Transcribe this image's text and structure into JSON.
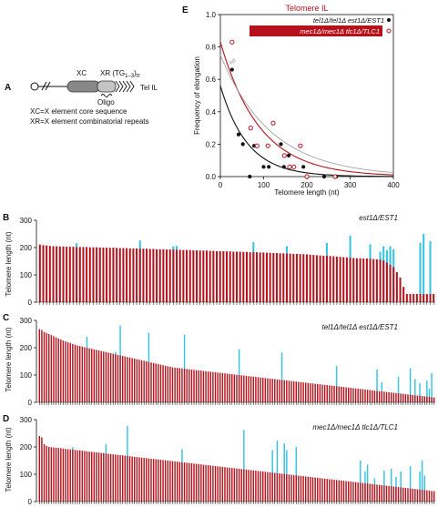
{
  "colors": {
    "red": "#b5121b",
    "cyan": "#33c3e3",
    "black": "#111111",
    "grey": "#999999"
  },
  "panel_a": {
    "letter": "A",
    "xc": "XC",
    "xr_prefix": "XR (TG",
    "xr_sub": "1–3",
    "xr_suffix": ")",
    "xr_n": "n",
    "oligo": "Oligo",
    "tel": "Tel IL",
    "legend1": "XC=X element core sequence",
    "legend2": "XR=X element combinatorial repeats"
  },
  "chart_data": [
    {
      "type": "scatter",
      "panel": "E",
      "title": "Telomere IL",
      "xlabel": "Telomere length (nt)",
      "ylabel": "Frequency of elongation",
      "xlim": [
        0,
        400
      ],
      "ylim": [
        0,
        1.0
      ],
      "xticks": [
        "0",
        "100",
        "200",
        "300",
        "400"
      ],
      "yticks": [
        "0.0",
        "0.2",
        "0.4",
        "0.6",
        "0.8",
        "1.0"
      ],
      "wt_label": "wt",
      "legend_placement": "top-right",
      "series": [
        {
          "name": "tel1Δ/tel1Δ est1Δ/EST1",
          "marker": "filled-circle",
          "points": [
            [
              27,
              0.66
            ],
            [
              42,
              0.26
            ],
            [
              52,
              0.2
            ],
            [
              68,
              0.0
            ],
            [
              78,
              0.19
            ],
            [
              100,
              0.06
            ],
            [
              112,
              0.06
            ],
            [
              140,
              0.2
            ],
            [
              147,
              0.06
            ],
            [
              158,
              0.13
            ],
            [
              192,
              0.06
            ],
            [
              200,
              0.0
            ],
            [
              240,
              0.0
            ],
            [
              268,
              0.0
            ]
          ],
          "fit": [
            0.56,
            0.016
          ]
        },
        {
          "name": "mec1Δ/mec1Δ tlc1Δ/TLC1",
          "marker": "open-circle",
          "points": [
            [
              27,
              0.83
            ],
            [
              70,
              0.3
            ],
            [
              85,
              0.19
            ],
            [
              110,
              0.19
            ],
            [
              122,
              0.33
            ],
            [
              148,
              0.13
            ],
            [
              160,
              0.06
            ],
            [
              170,
              0.06
            ],
            [
              185,
              0.19
            ],
            [
              200,
              0.0
            ],
            [
              265,
              0.0
            ]
          ],
          "fit": [
            0.83,
            0.011
          ]
        },
        {
          "name": "wt",
          "marker": "none",
          "fit": [
            0.75,
            0.0085
          ]
        }
      ]
    },
    {
      "type": "bar",
      "panel": "B",
      "title": "est1Δ/EST1",
      "ylabel": "Telomere length (nt)",
      "ylim": [
        0,
        300
      ],
      "yticks": [
        "0",
        "100",
        "200",
        "300"
      ],
      "series": [
        {
          "name": "Telomere length",
          "values": [
            211,
            209,
            208,
            206,
            205,
            205,
            204,
            204,
            203,
            203,
            203,
            202,
            202,
            202,
            202,
            201,
            201,
            201,
            200,
            200,
            200,
            199,
            199,
            199,
            198,
            198,
            198,
            197,
            197,
            197,
            196,
            196,
            196,
            195,
            195,
            194,
            194,
            194,
            193,
            193,
            193,
            192,
            192,
            191,
            191,
            191,
            190,
            190,
            189,
            189,
            189,
            188,
            188,
            187,
            187,
            187,
            186,
            186,
            185,
            185,
            185,
            184,
            184,
            183,
            183,
            183,
            182,
            182,
            181,
            181,
            180,
            180,
            179,
            179,
            178,
            178,
            177,
            177,
            176,
            176,
            175,
            174,
            173,
            172,
            171,
            170,
            170,
            169,
            168,
            167,
            166,
            165,
            164,
            163,
            162,
            161,
            161,
            160,
            160,
            159,
            158,
            157,
            156,
            153,
            145,
            137,
            128,
            110,
            90,
            56,
            30,
            30,
            30,
            30,
            30,
            30,
            30,
            30,
            30
          ]
        },
        {
          "name": "Elongation",
          "values": [
            [
              11,
              217
            ],
            [
              22,
              200
            ],
            [
              30,
              226
            ],
            [
              40,
              205
            ],
            [
              41,
              206
            ],
            [
              64,
              220
            ],
            [
              74,
              205
            ],
            [
              86,
              217
            ],
            [
              93,
              244
            ],
            [
              99,
              212
            ],
            [
              102,
              185
            ],
            [
              103,
              205
            ],
            [
              104,
              190
            ],
            [
              105,
              205
            ],
            [
              106,
              194
            ],
            [
              114,
              218
            ],
            [
              115,
              250
            ],
            [
              117,
              224
            ],
            [
              138,
              253
            ],
            [
              139,
              285
            ],
            [
              141,
              250
            ],
            [
              143,
              212
            ],
            [
              144,
              200
            ],
            [
              145,
              204
            ],
            [
              146,
              223
            ],
            [
              147,
              180
            ],
            [
              148,
              222
            ],
            [
              149,
              178
            ],
            [
              150,
              280
            ],
            [
              152,
              240
            ]
          ]
        }
      ]
    },
    {
      "type": "bar",
      "panel": "C",
      "title": "tel1Δ/tel1Δ est1Δ/EST1",
      "ylabel": "Telomere length (nt)",
      "ylim": [
        0,
        300
      ],
      "yticks": [
        "0",
        "100",
        "200",
        "300"
      ],
      "series": [
        {
          "name": "Telomere length",
          "values": [
            268,
            265,
            258,
            254,
            250,
            246,
            242,
            238,
            234,
            230,
            226,
            223,
            220,
            217,
            214,
            211,
            208,
            206,
            204,
            202,
            200,
            198,
            196,
            194,
            192,
            190,
            188,
            186,
            184,
            182,
            180,
            178,
            176,
            174,
            172,
            170,
            168,
            166,
            164,
            162,
            160,
            158,
            156,
            154,
            152,
            150,
            148,
            146,
            144,
            142,
            140,
            138,
            136,
            134,
            132,
            130,
            128,
            127,
            126,
            125,
            124,
            123,
            122,
            121,
            120,
            119,
            118,
            117,
            116,
            115,
            114,
            113,
            112,
            111,
            110,
            109,
            108,
            107,
            106,
            105,
            104,
            103,
            102,
            101,
            100,
            99,
            98,
            97,
            96,
            95,
            94,
            93,
            92,
            91,
            90,
            89,
            88,
            87,
            86,
            85,
            84,
            83,
            82,
            81,
            80,
            79,
            78,
            77,
            76,
            75,
            74,
            73,
            72,
            71,
            70,
            69,
            68,
            67,
            66,
            65,
            64,
            63,
            62,
            61,
            60,
            59,
            58,
            57,
            56,
            55,
            54,
            53,
            52,
            51,
            50,
            49,
            48,
            47,
            46,
            45,
            44,
            43,
            42,
            41,
            40,
            39,
            38,
            37,
            36,
            35,
            34,
            33,
            32,
            31,
            30,
            29,
            28,
            27,
            26,
            25,
            24,
            23,
            22,
            21,
            20,
            19,
            18
          ]
        },
        {
          "name": "Elongation",
          "values": [
            [
              20,
              240
            ],
            [
              32,
              185
            ],
            [
              34,
              282
            ],
            [
              46,
              255
            ],
            [
              61,
              248
            ],
            [
              84,
              195
            ],
            [
              102,
              182
            ],
            [
              125,
              133
            ],
            [
              142,
              120
            ],
            [
              144,
              73
            ],
            [
              151,
              93
            ],
            [
              156,
              125
            ],
            [
              158,
              85
            ],
            [
              160,
              70
            ],
            [
              163,
              80
            ],
            [
              164,
              50
            ],
            [
              165,
              107
            ]
          ]
        }
      ]
    },
    {
      "type": "bar",
      "panel": "D",
      "title": "mec1Δ/mec1Δ tlc1Δ/TLC1",
      "ylabel": "Telomere length (nt)",
      "ylim": [
        0,
        300
      ],
      "yticks": [
        "0",
        "100",
        "200",
        "300"
      ],
      "series": [
        {
          "name": "Telomere length",
          "values": [
            240,
            235,
            210,
            204,
            200,
            199,
            198,
            197,
            196,
            195,
            194,
            193,
            192,
            191,
            190,
            189,
            188,
            187,
            186,
            185,
            184,
            183,
            182,
            181,
            180,
            179,
            178,
            177,
            176,
            175,
            174,
            173,
            172,
            171,
            170,
            169,
            168,
            167,
            166,
            165,
            164,
            163,
            162,
            161,
            160,
            159,
            158,
            157,
            156,
            155,
            154,
            153,
            152,
            151,
            150,
            149,
            148,
            147,
            146,
            145,
            144,
            143,
            142,
            141,
            140,
            139,
            138,
            137,
            136,
            135,
            134,
            133,
            132,
            131,
            130,
            129,
            128,
            127,
            126,
            125,
            124,
            123,
            122,
            121,
            120,
            119,
            118,
            117,
            116,
            115,
            114,
            113,
            112,
            111,
            110,
            109,
            108,
            107,
            106,
            105,
            104,
            103,
            102,
            101,
            100,
            99,
            98,
            97,
            96,
            95,
            94,
            93,
            92,
            91,
            90,
            89,
            88,
            87,
            86,
            85,
            84,
            83,
            82,
            81,
            80,
            79,
            78,
            77,
            76,
            75,
            74,
            73,
            72,
            71,
            70,
            69,
            68,
            67,
            66,
            65,
            64,
            63,
            62,
            61,
            60,
            59,
            58,
            57,
            56,
            55,
            54,
            53,
            52,
            51,
            50,
            49,
            48,
            47,
            46,
            45,
            44,
            43,
            42,
            41,
            40,
            39,
            38
          ]
        },
        {
          "name": "Elongation",
          "values": [
            [
              14,
              199
            ],
            [
              28,
              211
            ],
            [
              37,
              277
            ],
            [
              60,
              192
            ],
            [
              86,
              262
            ],
            [
              98,
              188
            ],
            [
              100,
              223
            ],
            [
              103,
              213
            ],
            [
              104,
              188
            ],
            [
              108,
              200
            ],
            [
              135,
              150
            ],
            [
              137,
              110
            ],
            [
              138,
              135
            ],
            [
              141,
              85
            ],
            [
              145,
              113
            ],
            [
              148,
              120
            ],
            [
              150,
              90
            ],
            [
              152,
              110
            ],
            [
              156,
              130
            ],
            [
              160,
              110
            ],
            [
              161,
              151
            ],
            [
              162,
              95
            ]
          ]
        }
      ]
    }
  ]
}
